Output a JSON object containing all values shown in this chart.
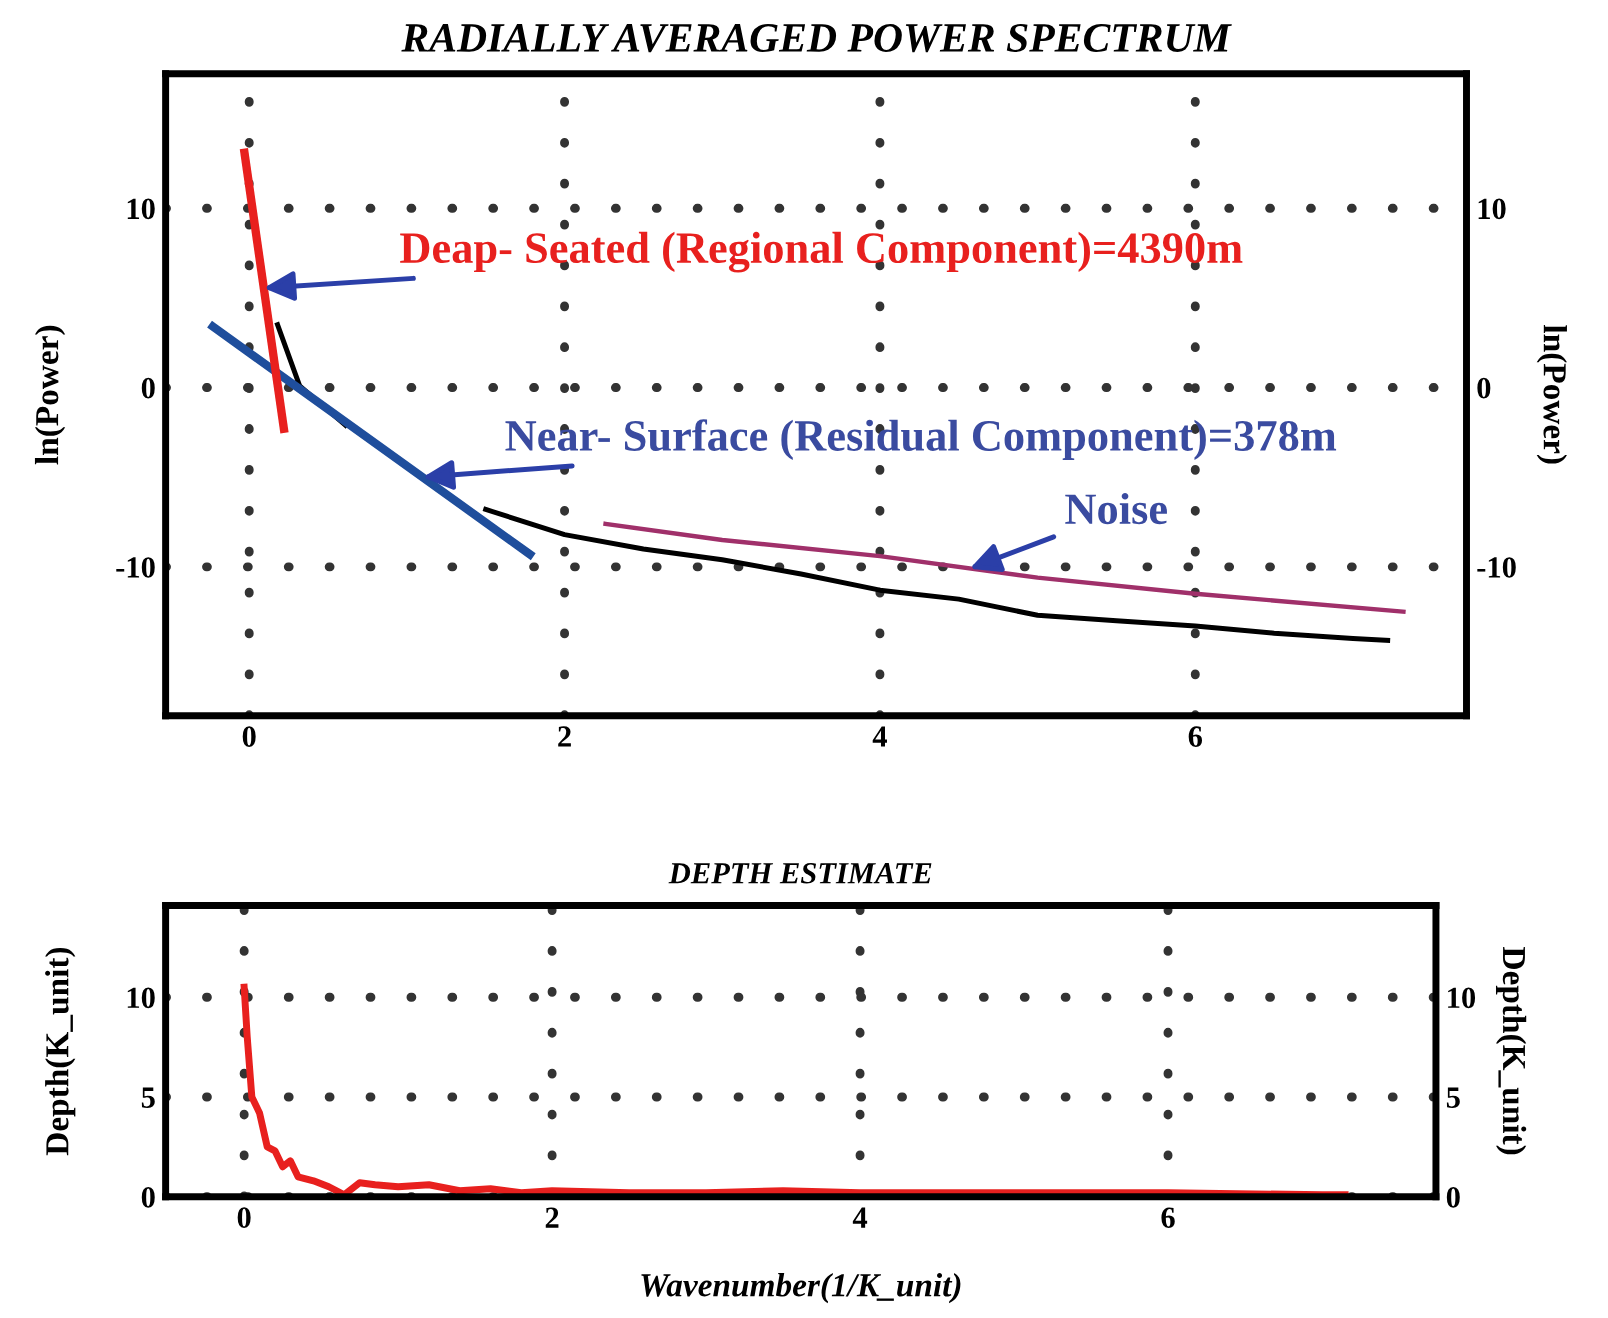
{
  "chart_data": [
    {
      "type": "line",
      "title": "RADIALLY AVERAGED POWER SPECTRUM",
      "ylabel": "ln(Power)",
      "y2label": "ln(Power)",
      "xlim": [
        -0.53,
        7.72
      ],
      "xticks": [
        0,
        2,
        4,
        6
      ],
      "ylim": [
        -18.3,
        17.5
      ],
      "yticks": [
        -10,
        0,
        10
      ],
      "y2lim": [
        -18.3,
        17.5
      ],
      "y2ticks": [
        -10,
        0,
        10
      ],
      "grid": true,
      "legend": false,
      "line_style": "solid",
      "series": [
        {
          "color": "#000000",
          "x": [
            0.18,
            0.32,
            0.61,
            1.0,
            1.5,
            2.0,
            2.5,
            3.0,
            3.5,
            4.0,
            4.5,
            5.0,
            5.5,
            6.0,
            6.5,
            7.0,
            7.22
          ],
          "values": [
            3.5,
            0.1,
            -2.1,
            null,
            -6.8,
            -8.2,
            -9.0,
            -9.6,
            -10.4,
            -11.3,
            -11.8,
            -12.7,
            -13.0,
            -13.3,
            -13.7,
            -14.0,
            -14.1
          ]
        },
        {
          "color": "#1f4e9c",
          "x": [
            -0.23,
            1.78
          ],
          "values": [
            3.4,
            -9.3
          ]
        },
        {
          "color": "#e8201e",
          "x": [
            -0.03,
            0.22
          ],
          "values": [
            13.1,
            -2.3
          ]
        },
        {
          "color": "#a0306a",
          "x": [
            2.26,
            3.0,
            4.0,
            5.0,
            6.0,
            7.32
          ],
          "values": [
            -7.6,
            -8.5,
            -9.4,
            -10.6,
            -11.5,
            -12.5
          ]
        }
      ],
      "annotations": [
        "Deap- Seated (Regional Component)=4390m",
        {
          "text": "Near- Surface (Residual Component)=378m",
          "x": 1.1,
          "y": -5.0
        },
        {
          "text": "Noise",
          "x": 4.57,
          "y": -10.1
        }
      ]
    },
    {
      "type": "line",
      "title": "DEPTH ESTIMATE",
      "xlabel": "Wavenumber(1/K_unit)",
      "ylabel": "Depth(K_unit)",
      "y2label": "Depth(K_unit)",
      "xlim": [
        -0.51,
        7.74
      ],
      "xticks": [
        0,
        2,
        4,
        6
      ],
      "ylim": [
        0,
        14.6
      ],
      "yticks": [
        0,
        5,
        10
      ],
      "y2lim": [
        0,
        14.6
      ],
      "y2ticks": [
        0,
        5,
        10
      ],
      "grid": true,
      "legend": false,
      "line_style": "solid",
      "series": [
        {
          "color": "#e8201e",
          "x": [
            0.0,
            0.02,
            0.05,
            0.1,
            0.15,
            0.2,
            0.25,
            0.3,
            0.35,
            0.45,
            0.55,
            0.65,
            0.75,
            0.85,
            1.0,
            1.2,
            1.4,
            1.6,
            1.8,
            2.0,
            2.5,
            3.0,
            3.5,
            4.0,
            5.0,
            6.0,
            7.0,
            7.15
          ],
          "values": [
            10.5,
            8,
            5,
            4.2,
            2.5,
            2.3,
            1.5,
            1.8,
            1.0,
            0.8,
            0.5,
            0.1,
            0.7,
            0.6,
            0.5,
            0.6,
            0.3,
            0.4,
            0.2,
            0.3,
            0.2,
            0.2,
            0.3,
            0.2,
            0.2,
            0.2,
            0.1,
            0.1
          ]
        }
      ]
    }
  ]
}
